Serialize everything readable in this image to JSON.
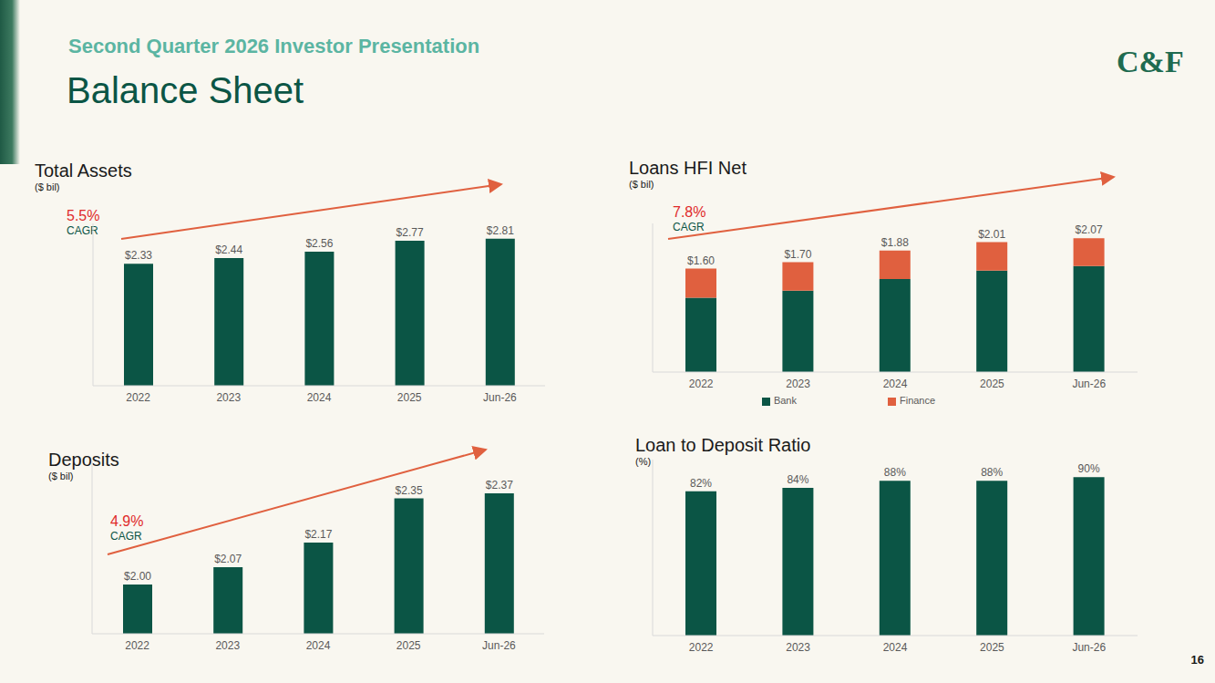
{
  "title": "Second Quarter 2026 Investor Presentation",
  "subtitle": "Balance Sheet",
  "logo": "C&F",
  "page_number": 16,
  "chart_data": [
    {
      "type": "bar",
      "title": "Total Assets",
      "subtitle": "($ bil)",
      "categories": [
        "2022",
        "2023",
        "2024",
        "2025",
        "Jun-26"
      ],
      "values": [
        2.33,
        2.44,
        2.56,
        2.77,
        2.81
      ],
      "value_labels": [
        "$2.33",
        "$2.44",
        "$2.56",
        "$2.77",
        "$2.81"
      ],
      "color": "#0b5545",
      "ylim": [
        0,
        3.1
      ],
      "data_labels": true,
      "tick_labels": "x",
      "annotations": [
        "5.5%",
        "CAGR"
      ]
    },
    {
      "type": "bar",
      "title": "Loans HFI Net",
      "subtitle": "($ bil)",
      "categories": [
        "2022",
        "2023",
        "2024",
        "2025",
        "Jun-26"
      ],
      "series": [
        {
          "name": "Bank",
          "color": "#0b5545",
          "values": [
            1.15,
            1.26,
            1.44,
            1.57,
            1.64
          ]
        },
        {
          "name": "Finance",
          "color": "#e0603f",
          "values": [
            0.45,
            0.44,
            0.44,
            0.44,
            0.43
          ]
        }
      ],
      "total_labels": [
        "$1.60",
        "$1.70",
        "$1.88",
        "$2.01",
        "$2.07"
      ],
      "stacked": true,
      "ylim": [
        0,
        2.3
      ],
      "data_labels": true,
      "tick_labels": "x",
      "legend": "bottom",
      "annotations": [
        "7.8%",
        "CAGR"
      ]
    },
    {
      "type": "bar",
      "title": "Deposits",
      "subtitle": "($ bil)",
      "categories": [
        "2022",
        "2023",
        "2024",
        "2025",
        "Jun-26"
      ],
      "values": [
        2.0,
        2.07,
        2.17,
        2.35,
        2.37
      ],
      "value_labels": [
        "$2.00",
        "$2.07",
        "$2.17",
        "$2.35",
        "$2.37"
      ],
      "color": "#0b5545",
      "ylim": [
        1.8,
        2.5
      ],
      "data_labels": true,
      "tick_labels": "x",
      "annotations": [
        "4.9%",
        "CAGR"
      ]
    },
    {
      "type": "bar",
      "title": "Loan to Deposit Ratio",
      "subtitle": "(%)",
      "categories": [
        "2022",
        "2023",
        "2024",
        "2025",
        "Jun-26"
      ],
      "values": [
        82,
        84,
        88,
        88,
        90
      ],
      "value_labels": [
        "82%",
        "84%",
        "88%",
        "88%",
        "90%"
      ],
      "color": "#0b5545",
      "ylim": [
        0,
        100
      ],
      "data_labels": true,
      "tick_labels": "x"
    }
  ]
}
